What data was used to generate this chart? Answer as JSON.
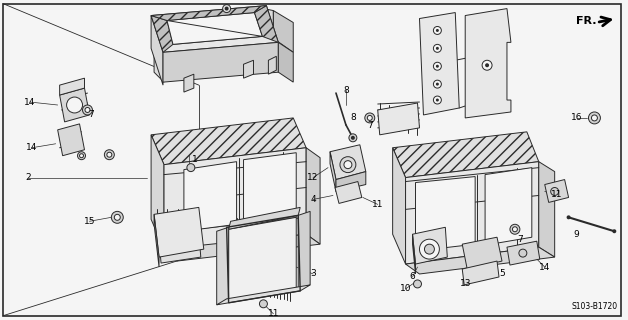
{
  "bg_color": "#f5f5f5",
  "line_color": "#2a2a2a",
  "hatch_color": "#555555",
  "diagram_number": "S103-B1720",
  "fr_label": "FR.",
  "border_lw": 1.2,
  "lw": 0.7
}
